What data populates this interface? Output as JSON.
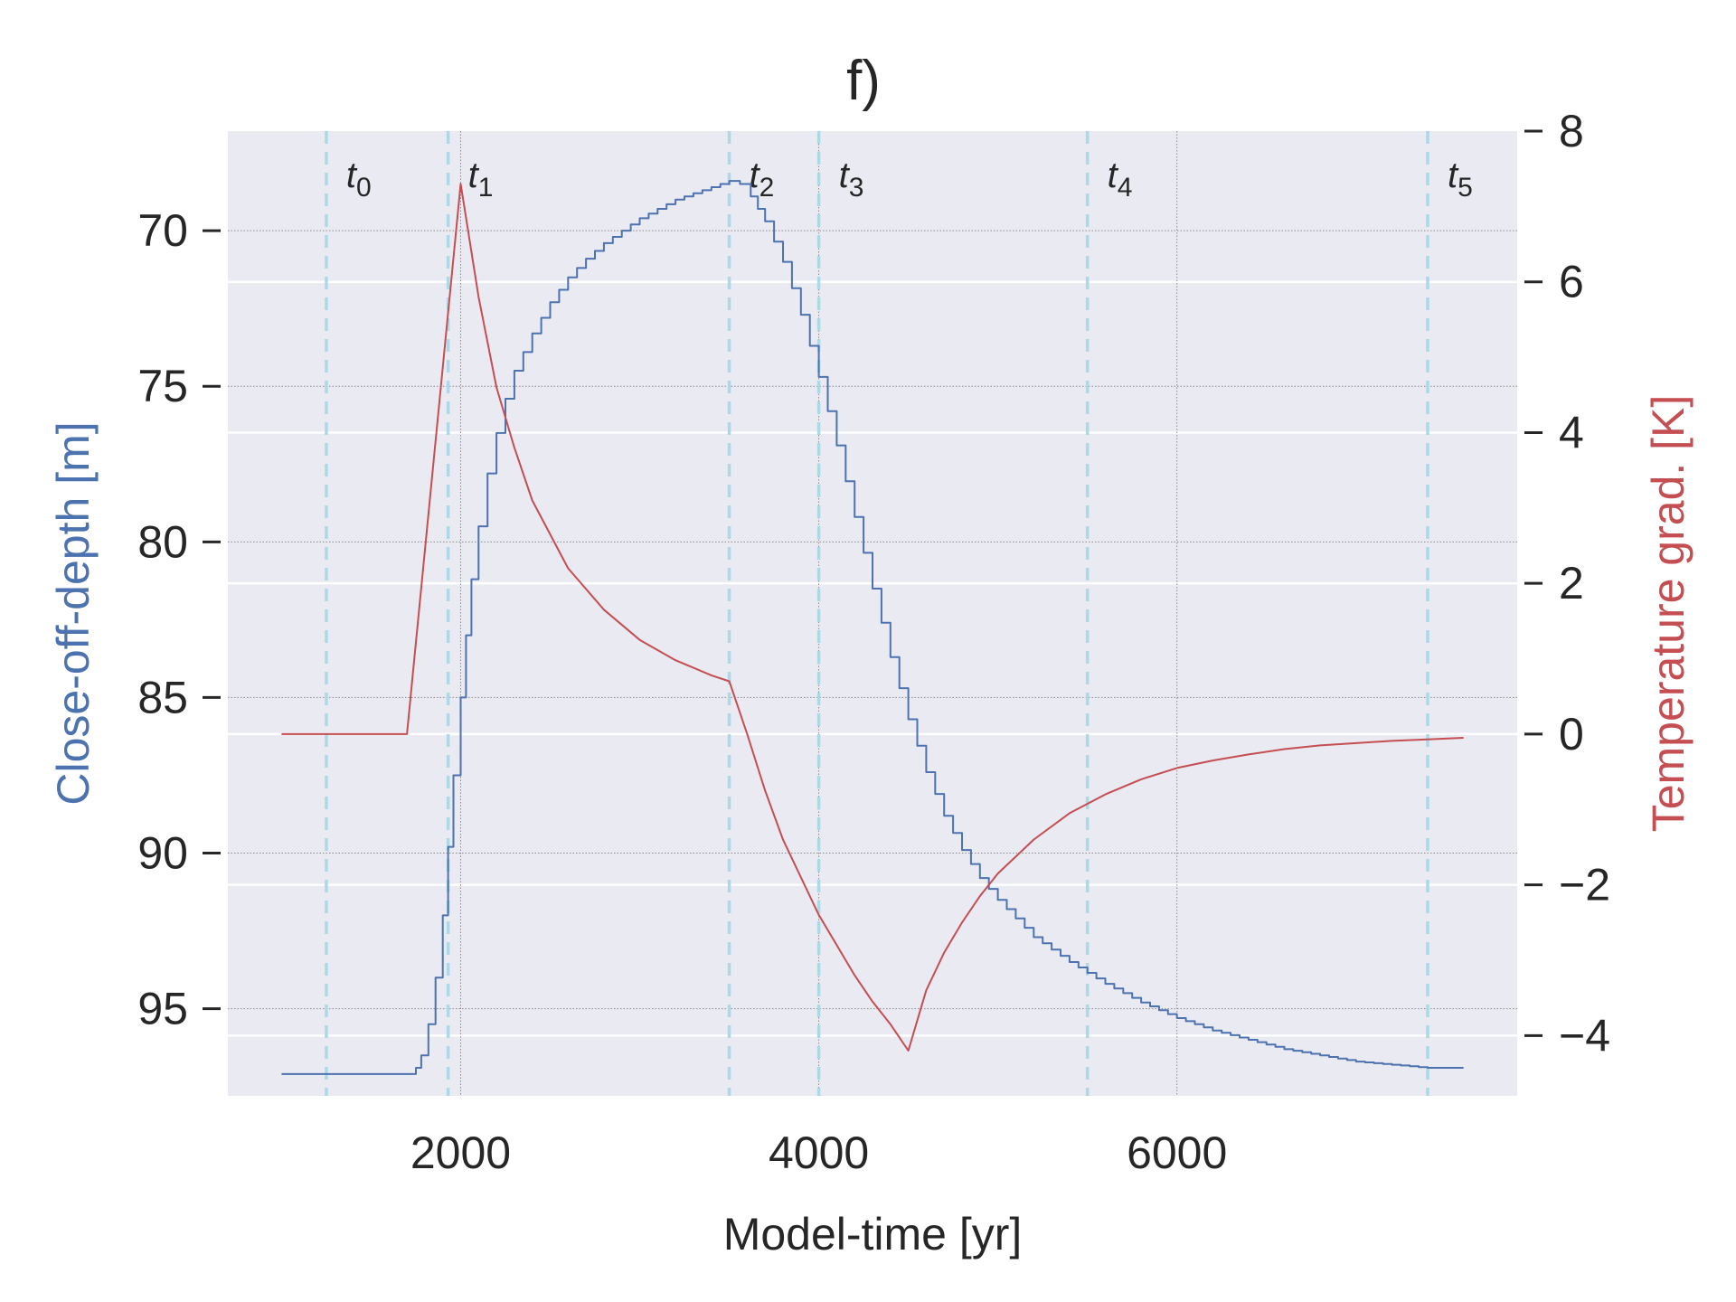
{
  "chart_data": {
    "type": "line",
    "title": "f)",
    "xlabel": "Model-time [yr]",
    "ylabel_left": "Close-off-depth [m]",
    "ylabel_right": "Temperature grad. [K]",
    "xlim": [
      700,
      7900
    ],
    "ylim_left": [
      97.8,
      66.8
    ],
    "ylim_right": [
      -4.8,
      8
    ],
    "left_axis_inverted": true,
    "x_ticks": [
      2000,
      4000,
      6000
    ],
    "y_ticks_left": [
      70,
      75,
      80,
      85,
      90,
      95
    ],
    "y_ticks_right": [
      8,
      6,
      4,
      2,
      0,
      -2,
      -4
    ],
    "grid": true,
    "colors": {
      "background": "#eaeaf2",
      "depth": "#4c72b0",
      "temperature": "#c44e52",
      "markers": "#add8e6",
      "text": "#262626"
    },
    "markers": [
      {
        "name": "t",
        "sub": "0",
        "x": 1250
      },
      {
        "name": "t",
        "sub": "1",
        "x": 1930
      },
      {
        "name": "t",
        "sub": "2",
        "x": 3500
      },
      {
        "name": "t",
        "sub": "3",
        "x": 4000
      },
      {
        "name": "t",
        "sub": "4",
        "x": 5500
      },
      {
        "name": "t",
        "sub": "5",
        "x": 7400
      }
    ],
    "series": [
      {
        "axis": "left",
        "color": "#4c72b0",
        "step": true,
        "points": [
          [
            1000,
            97.1
          ],
          [
            1700,
            97.1
          ],
          [
            1750,
            96.9
          ],
          [
            1780,
            96.5
          ],
          [
            1820,
            95.5
          ],
          [
            1860,
            94
          ],
          [
            1900,
            92
          ],
          [
            1930,
            89.8
          ],
          [
            1960,
            87.5
          ],
          [
            2000,
            85
          ],
          [
            2030,
            83
          ],
          [
            2060,
            81.2
          ],
          [
            2100,
            79.5
          ],
          [
            2150,
            77.8
          ],
          [
            2200,
            76.5
          ],
          [
            2250,
            75.4
          ],
          [
            2300,
            74.5
          ],
          [
            2400,
            73.3
          ],
          [
            2500,
            72.3
          ],
          [
            2600,
            71.5
          ],
          [
            2700,
            70.9
          ],
          [
            2800,
            70.4
          ],
          [
            2900,
            70.0
          ],
          [
            3000,
            69.6
          ],
          [
            3100,
            69.3
          ],
          [
            3200,
            69.0
          ],
          [
            3300,
            68.8
          ],
          [
            3400,
            68.6
          ],
          [
            3500,
            68.4
          ],
          [
            3560,
            68.5
          ],
          [
            3620,
            68.9
          ],
          [
            3700,
            69.7
          ],
          [
            3800,
            71.0
          ],
          [
            3900,
            72.7
          ],
          [
            4000,
            74.7
          ],
          [
            4100,
            76.9
          ],
          [
            4200,
            79.2
          ],
          [
            4300,
            81.5
          ],
          [
            4400,
            83.7
          ],
          [
            4500,
            85.7
          ],
          [
            4600,
            87.4
          ],
          [
            4700,
            88.8
          ],
          [
            4800,
            89.9
          ],
          [
            4900,
            90.8
          ],
          [
            5000,
            91.5
          ],
          [
            5200,
            92.7
          ],
          [
            5400,
            93.5
          ],
          [
            5600,
            94.2
          ],
          [
            5800,
            94.8
          ],
          [
            6000,
            95.3
          ],
          [
            6200,
            95.7
          ],
          [
            6400,
            96.0
          ],
          [
            6600,
            96.3
          ],
          [
            6800,
            96.5
          ],
          [
            7000,
            96.7
          ],
          [
            7200,
            96.8
          ],
          [
            7400,
            96.9
          ],
          [
            7600,
            96.9
          ]
        ]
      },
      {
        "axis": "right",
        "color": "#c44e52",
        "step": false,
        "points": [
          [
            1000,
            0
          ],
          [
            1700,
            0
          ],
          [
            2000,
            7.3
          ],
          [
            2100,
            5.8
          ],
          [
            2200,
            4.6
          ],
          [
            2300,
            3.8
          ],
          [
            2400,
            3.1
          ],
          [
            2600,
            2.2
          ],
          [
            2800,
            1.65
          ],
          [
            3000,
            1.25
          ],
          [
            3200,
            0.98
          ],
          [
            3400,
            0.78
          ],
          [
            3500,
            0.7
          ],
          [
            3600,
            0.0
          ],
          [
            3700,
            -0.75
          ],
          [
            3800,
            -1.4
          ],
          [
            3900,
            -1.9
          ],
          [
            4000,
            -2.4
          ],
          [
            4100,
            -2.8
          ],
          [
            4200,
            -3.2
          ],
          [
            4300,
            -3.55
          ],
          [
            4400,
            -3.85
          ],
          [
            4500,
            -4.2
          ],
          [
            4550,
            -3.8
          ],
          [
            4600,
            -3.4
          ],
          [
            4700,
            -2.9
          ],
          [
            4800,
            -2.5
          ],
          [
            4900,
            -2.15
          ],
          [
            5000,
            -1.85
          ],
          [
            5200,
            -1.4
          ],
          [
            5400,
            -1.05
          ],
          [
            5600,
            -0.8
          ],
          [
            5800,
            -0.6
          ],
          [
            6000,
            -0.45
          ],
          [
            6200,
            -0.35
          ],
          [
            6400,
            -0.27
          ],
          [
            6600,
            -0.2
          ],
          [
            6800,
            -0.15
          ],
          [
            7000,
            -0.12
          ],
          [
            7200,
            -0.09
          ],
          [
            7400,
            -0.07
          ],
          [
            7600,
            -0.05
          ]
        ]
      }
    ]
  }
}
